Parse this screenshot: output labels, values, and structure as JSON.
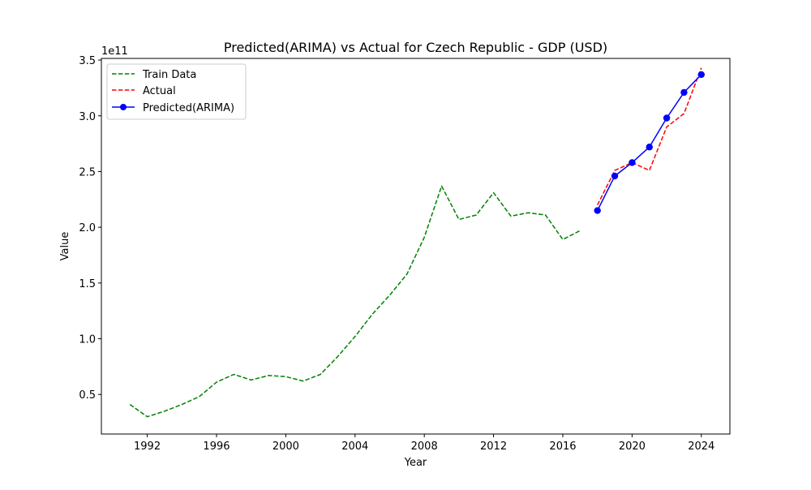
{
  "chart_data": {
    "type": "line",
    "title": "Predicted(ARIMA) vs Actual for Czech Republic - GDP (USD)",
    "xlabel": "Year",
    "ylabel": "Value",
    "y_scale_label": "1e11",
    "xlim": [
      1989.35,
      2025.65
    ],
    "ylim": [
      0.145,
      3.515
    ],
    "x_ticks": [
      1992,
      1996,
      2000,
      2004,
      2008,
      2012,
      2016,
      2020,
      2024
    ],
    "y_ticks": [
      0.5,
      1.0,
      1.5,
      2.0,
      2.5,
      3.0,
      3.5
    ],
    "y_tick_labels": [
      "0.5",
      "1.0",
      "1.5",
      "2.0",
      "2.5",
      "3.0",
      "3.5"
    ],
    "legend_position": "top-left",
    "grid": false,
    "series": [
      {
        "name": "Train Data",
        "color": "#008000",
        "style": "dashed",
        "marker": "none",
        "x": [
          1991,
          1992,
          1993,
          1994,
          1995,
          1996,
          1997,
          1998,
          1999,
          2000,
          2001,
          2002,
          2003,
          2004,
          2005,
          2006,
          2007,
          2008,
          2009,
          2010,
          2011,
          2012,
          2013,
          2014,
          2015,
          2016,
          2017
        ],
        "y": [
          0.41,
          0.3,
          0.35,
          0.41,
          0.48,
          0.61,
          0.68,
          0.63,
          0.67,
          0.66,
          0.62,
          0.68,
          0.84,
          1.02,
          1.22,
          1.39,
          1.58,
          1.91,
          2.37,
          2.07,
          2.11,
          2.31,
          2.1,
          2.13,
          2.11,
          1.89,
          1.97
        ]
      },
      {
        "name": "Actual",
        "color": "#ff0000",
        "style": "dashed",
        "marker": "none",
        "x": [
          2018,
          2019,
          2020,
          2021,
          2022,
          2023,
          2024
        ],
        "y": [
          2.2,
          2.51,
          2.58,
          2.51,
          2.9,
          3.02,
          3.43
        ]
      },
      {
        "name": "Predicted(ARIMA)",
        "color": "#0000ff",
        "style": "solid",
        "marker": "circle",
        "x": [
          2018,
          2019,
          2020,
          2021,
          2022,
          2023,
          2024
        ],
        "y": [
          2.15,
          2.46,
          2.58,
          2.72,
          2.98,
          3.21,
          3.37
        ]
      }
    ]
  }
}
